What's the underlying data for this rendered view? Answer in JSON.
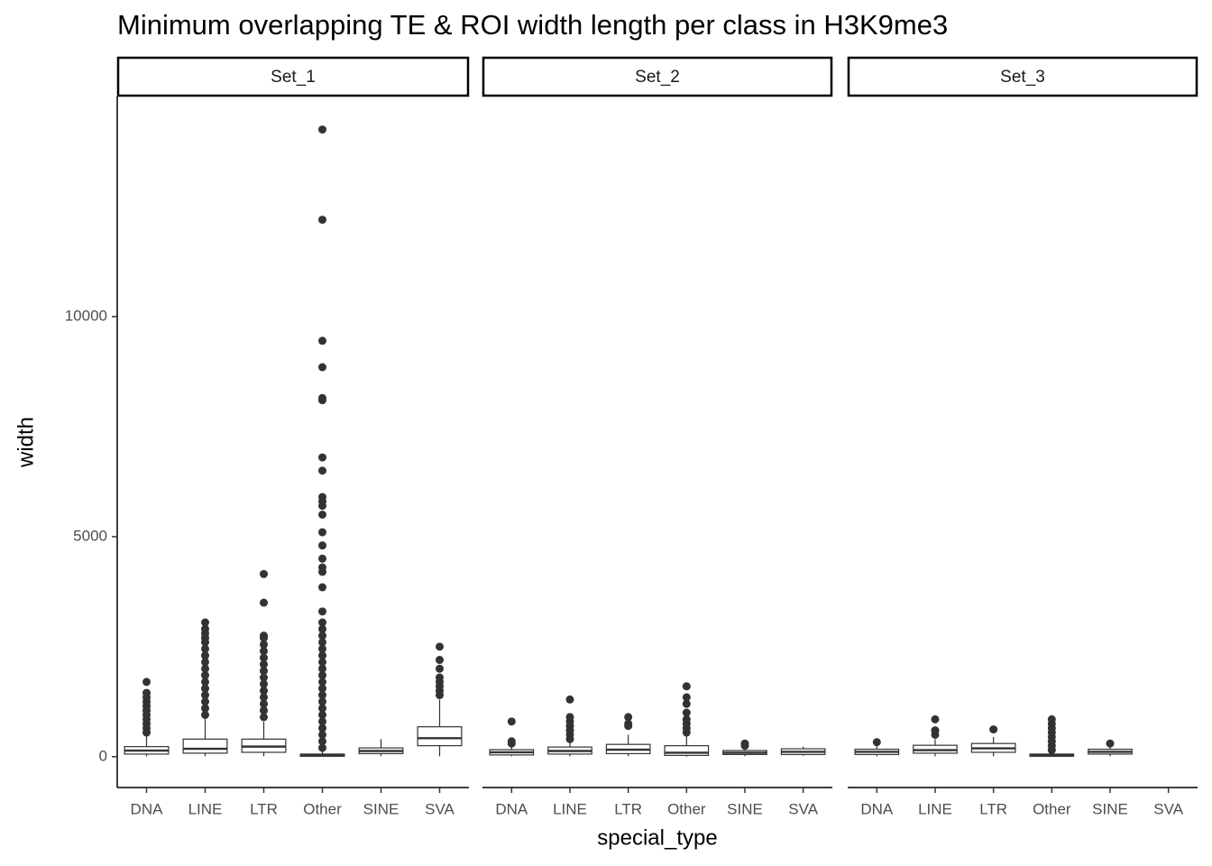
{
  "chart_data": {
    "type": "box",
    "title": "Minimum overlapping TE & ROI width length per class in H3K9me3",
    "x_label": "special_type",
    "y_label": "width",
    "categories": [
      "DNA",
      "LINE",
      "LTR",
      "Other",
      "SINE",
      "SVA"
    ],
    "ylim": [
      -700,
      15000
    ],
    "yticks": [
      0,
      5000,
      10000
    ],
    "facets": [
      {
        "name": "Set_1",
        "boxes": [
          {
            "low": 10,
            "q1": 60,
            "median": 140,
            "q3": 230,
            "high": 480,
            "outliers": [
              550,
              650,
              750,
              850,
              950,
              1050,
              1150,
              1250,
              1350,
              1450,
              1700
            ]
          },
          {
            "low": 10,
            "q1": 80,
            "median": 180,
            "q3": 400,
            "high": 870,
            "outliers": [
              950,
              1100,
              1250,
              1400,
              1550,
              1700,
              1850,
              2000,
              2150,
              2300,
              2450,
              2600,
              2700,
              2800,
              2900,
              3050
            ]
          },
          {
            "low": 10,
            "q1": 100,
            "median": 230,
            "q3": 400,
            "high": 800,
            "outliers": [
              900,
              1050,
              1200,
              1350,
              1500,
              1650,
              1800,
              1950,
              2100,
              2250,
              2400,
              2550,
              2700,
              2750,
              3500,
              4150
            ]
          },
          {
            "low": 0,
            "q1": 10,
            "median": 30,
            "q3": 60,
            "high": 130,
            "outliers": [
              200,
              350,
              500,
              650,
              800,
              950,
              1100,
              1250,
              1400,
              1550,
              1700,
              1850,
              2000,
              2150,
              2300,
              2450,
              2600,
              2750,
              2900,
              3050,
              3300,
              3850,
              4200,
              4300,
              4500,
              4800,
              5100,
              5500,
              5700,
              5800,
              5900,
              6500,
              6800,
              8100,
              8150,
              8850,
              9450,
              12200,
              14250
            ]
          },
          {
            "low": 10,
            "q1": 70,
            "median": 130,
            "q3": 200,
            "high": 400,
            "outliers": []
          },
          {
            "low": 10,
            "q1": 250,
            "median": 420,
            "q3": 680,
            "high": 1300,
            "outliers": [
              1400,
              1500,
              1600,
              1700,
              1800,
              2000,
              2200,
              2500
            ]
          }
        ]
      },
      {
        "name": "Set_2",
        "boxes": [
          {
            "low": 10,
            "q1": 40,
            "median": 100,
            "q3": 160,
            "high": 250,
            "outliers": [
              300,
              350,
              800
            ]
          },
          {
            "low": 10,
            "q1": 60,
            "median": 130,
            "q3": 220,
            "high": 350,
            "outliers": [
              400,
              500,
              600,
              700,
              800,
              900,
              1300
            ]
          },
          {
            "low": 10,
            "q1": 70,
            "median": 160,
            "q3": 280,
            "high": 500,
            "outliers": [
              700,
              750,
              900
            ]
          },
          {
            "low": 0,
            "q1": 30,
            "median": 90,
            "q3": 250,
            "high": 500,
            "outliers": [
              550,
              650,
              750,
              850,
              1000,
              1200,
              1350,
              1600
            ]
          },
          {
            "low": 10,
            "q1": 50,
            "median": 90,
            "q3": 140,
            "high": 220,
            "outliers": [
              250,
              300
            ]
          },
          {
            "low": 20,
            "q1": 50,
            "median": 110,
            "q3": 180,
            "high": 230,
            "outliers": []
          }
        ]
      },
      {
        "name": "Set_3",
        "boxes": [
          {
            "low": 10,
            "q1": 50,
            "median": 110,
            "q3": 170,
            "high": 250,
            "outliers": [
              330
            ]
          },
          {
            "low": 10,
            "q1": 80,
            "median": 150,
            "q3": 260,
            "high": 400,
            "outliers": [
              500,
              600,
              850
            ]
          },
          {
            "low": 10,
            "q1": 100,
            "median": 190,
            "q3": 300,
            "high": 450,
            "outliers": [
              620
            ]
          },
          {
            "low": 0,
            "q1": 10,
            "median": 30,
            "q3": 60,
            "high": 120,
            "outliers": [
              150,
              250,
              350,
              450,
              550,
              650,
              750,
              850
            ]
          },
          {
            "low": 10,
            "q1": 60,
            "median": 110,
            "q3": 170,
            "high": 240,
            "outliers": [
              300
            ]
          },
          null
        ]
      }
    ]
  }
}
